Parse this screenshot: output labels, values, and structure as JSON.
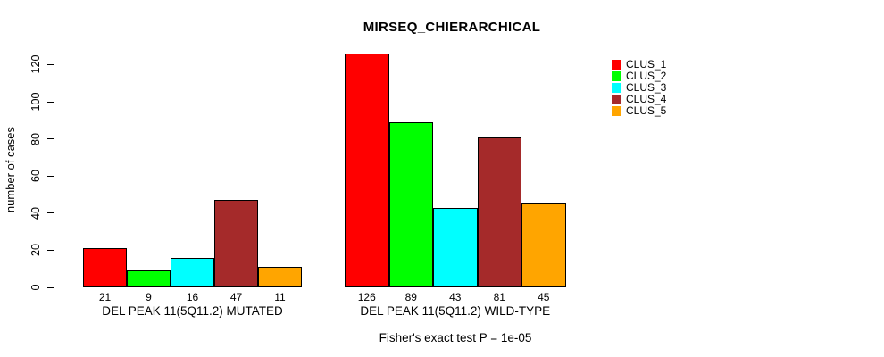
{
  "chart_data": {
    "type": "bar",
    "title": "MIRSEQ_CHIERARCHICAL",
    "ylabel": "number of cases",
    "xlabel": "",
    "categories": [
      "DEL PEAK 11(5Q11.2) MUTATED",
      "DEL PEAK 11(5Q11.2) WILD-TYPE"
    ],
    "series": [
      {
        "name": "CLUS_1",
        "color": "#ff0000",
        "values": [
          21,
          126
        ]
      },
      {
        "name": "CLUS_2",
        "color": "#00ff00",
        "values": [
          9,
          89
        ]
      },
      {
        "name": "CLUS_3",
        "color": "#00ffff",
        "values": [
          16,
          43
        ]
      },
      {
        "name": "CLUS_4",
        "color": "#a52a2a",
        "values": [
          47,
          81
        ]
      },
      {
        "name": "CLUS_5",
        "color": "#ffa500",
        "values": [
          11,
          45
        ]
      }
    ],
    "yticks": [
      0,
      20,
      40,
      60,
      80,
      100,
      120
    ],
    "ylim": [
      0,
      126
    ],
    "grid": false,
    "legend_position": "right",
    "annotation": "Fisher's exact test P = 1e-05"
  }
}
